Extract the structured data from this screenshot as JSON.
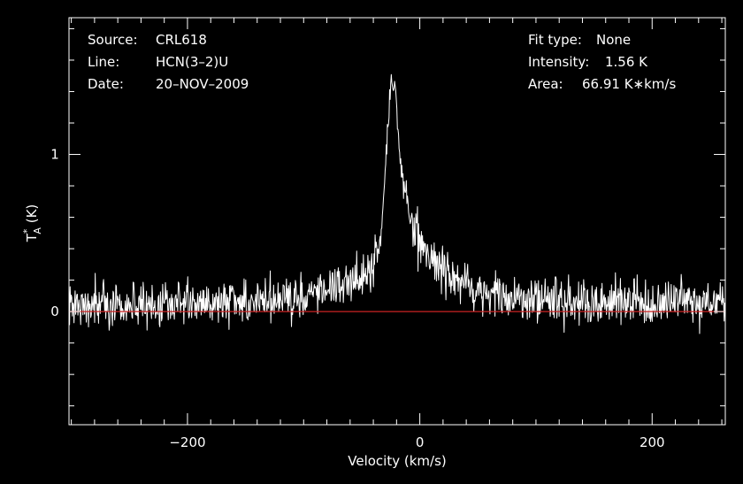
{
  "chart_data": {
    "type": "line",
    "xlabel": "Velocity (km/s)",
    "ylabel": {
      "base": "T",
      "sup": "*",
      "sub": "A",
      "unit": " (K)"
    },
    "xlim": [
      -302,
      263
    ],
    "ylim": [
      -0.72,
      1.87
    ],
    "x_ticks": [
      {
        "value": -200,
        "label": "−200"
      },
      {
        "value": 0,
        "label": "0"
      },
      {
        "value": 200,
        "label": "200"
      }
    ],
    "y_ticks": [
      {
        "value": 0,
        "label": "0"
      },
      {
        "value": 1,
        "label": "1"
      }
    ],
    "baseline": {
      "value": 0,
      "color": "#cc2222"
    },
    "line_color": "#ffffff",
    "background": "#000000",
    "noise_rms": 0.12,
    "profile_points": [
      {
        "x": -302,
        "y": 0.04
      },
      {
        "x": -180,
        "y": 0.06
      },
      {
        "x": -120,
        "y": 0.08
      },
      {
        "x": -80,
        "y": 0.14
      },
      {
        "x": -50,
        "y": 0.22
      },
      {
        "x": -40,
        "y": 0.28
      },
      {
        "x": -34,
        "y": 0.45
      },
      {
        "x": -30,
        "y": 0.85
      },
      {
        "x": -27,
        "y": 1.25
      },
      {
        "x": -24,
        "y": 1.5
      },
      {
        "x": -21,
        "y": 1.38
      },
      {
        "x": -18,
        "y": 1.05
      },
      {
        "x": -14,
        "y": 0.8
      },
      {
        "x": -8,
        "y": 0.6
      },
      {
        "x": 0,
        "y": 0.45
      },
      {
        "x": 10,
        "y": 0.33
      },
      {
        "x": 30,
        "y": 0.22
      },
      {
        "x": 60,
        "y": 0.12
      },
      {
        "x": 100,
        "y": 0.07
      },
      {
        "x": 263,
        "y": 0.05
      }
    ]
  },
  "header": {
    "left": [
      {
        "key": "Source:",
        "value": "CRL618"
      },
      {
        "key": "Line:",
        "value": "HCN(3–2)U"
      },
      {
        "key": "Date:",
        "value": "20–NOV–2009"
      }
    ],
    "right": [
      {
        "key": "Fit type:",
        "value": "None"
      },
      {
        "key": "Intensity:",
        "value": "1.56 K"
      },
      {
        "key": "Area:",
        "value": "66.91 K∗km/s"
      }
    ]
  }
}
